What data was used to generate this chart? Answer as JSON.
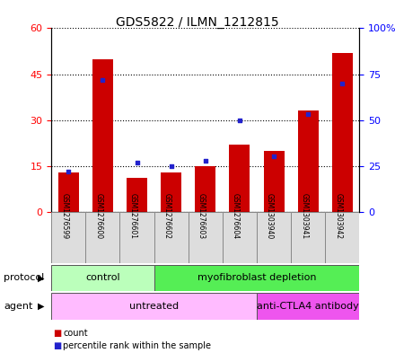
{
  "title": "GDS5822 / ILMN_1212815",
  "samples": [
    "GSM1276599",
    "GSM1276600",
    "GSM1276601",
    "GSM1276602",
    "GSM1276603",
    "GSM1276604",
    "GSM1303940",
    "GSM1303941",
    "GSM1303942"
  ],
  "counts": [
    13,
    50,
    11,
    13,
    15,
    22,
    20,
    33,
    52
  ],
  "percentile_ranks": [
    22,
    72,
    27,
    25,
    28,
    50,
    30,
    53,
    70
  ],
  "bar_color": "#cc0000",
  "dot_color": "#2222cc",
  "left_ylim": [
    0,
    60
  ],
  "right_ylim": [
    0,
    100
  ],
  "left_yticks": [
    0,
    15,
    30,
    45,
    60
  ],
  "right_yticks": [
    0,
    25,
    50,
    75,
    100
  ],
  "right_yticklabels": [
    "0",
    "25",
    "50",
    "75",
    "100%"
  ],
  "protocol_groups": [
    {
      "label": "control",
      "start": 0,
      "end": 3,
      "color": "#bbffbb"
    },
    {
      "label": "myofibroblast depletion",
      "start": 3,
      "end": 9,
      "color": "#55ee55"
    }
  ],
  "agent_groups": [
    {
      "label": "untreated",
      "start": 0,
      "end": 6,
      "color": "#ffbbff"
    },
    {
      "label": "anti-CTLA4 antibody",
      "start": 6,
      "end": 9,
      "color": "#ee55ee"
    }
  ],
  "legend_count_label": "count",
  "legend_pct_label": "percentile rank within the sample",
  "protocol_label": "protocol",
  "agent_label": "agent"
}
